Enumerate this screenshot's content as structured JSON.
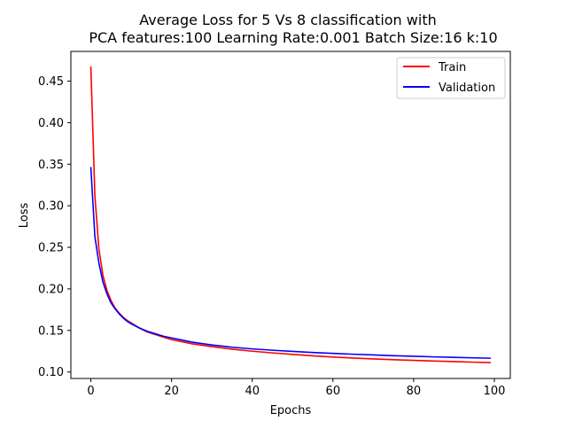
{
  "chart_data": {
    "type": "line",
    "title": "Average Loss for 5 Vs 8 classification with\nPCA features:100 Learning Rate:0.001 Batch Size:16 k:10",
    "xlabel": "Epochs",
    "ylabel": "Loss",
    "xlim": [
      -4.95,
      103.95
    ],
    "ylim": [
      0.0922,
      0.4857
    ],
    "xticks": [
      0,
      20,
      40,
      60,
      80,
      100
    ],
    "yticks": [
      0.1,
      0.15,
      0.2,
      0.25,
      0.3,
      0.35,
      0.4,
      0.45
    ],
    "xtick_labels": [
      "0",
      "20",
      "40",
      "60",
      "80",
      "100"
    ],
    "ytick_labels": [
      "0.10",
      "0.15",
      "0.20",
      "0.25",
      "0.30",
      "0.35",
      "0.40",
      "0.45"
    ],
    "grid": false,
    "legend": {
      "location": "top-right"
    },
    "series": [
      {
        "name": "Train",
        "color": "#ff0000",
        "x": [
          0,
          1,
          2,
          3,
          4,
          5,
          6,
          7,
          8,
          9,
          10,
          12,
          14,
          16,
          18,
          20,
          25,
          30,
          35,
          40,
          45,
          50,
          55,
          60,
          65,
          70,
          75,
          80,
          85,
          90,
          95,
          99
        ],
        "y": [
          0.467,
          0.312,
          0.248,
          0.216,
          0.198,
          0.186,
          0.177,
          0.171,
          0.166,
          0.162,
          0.159,
          0.153,
          0.148,
          0.145,
          0.142,
          0.139,
          0.134,
          0.1305,
          0.1275,
          0.125,
          0.123,
          0.1212,
          0.1195,
          0.118,
          0.1168,
          0.1157,
          0.1148,
          0.114,
          0.1132,
          0.1125,
          0.1118,
          0.1113
        ]
      },
      {
        "name": "Validation",
        "color": "#0000ff",
        "x": [
          0,
          1,
          2,
          3,
          4,
          5,
          6,
          7,
          8,
          9,
          10,
          12,
          14,
          16,
          18,
          20,
          25,
          30,
          35,
          40,
          45,
          50,
          55,
          60,
          65,
          70,
          75,
          80,
          85,
          90,
          95,
          99
        ],
        "y": [
          0.346,
          0.263,
          0.231,
          0.208,
          0.194,
          0.183,
          0.176,
          0.17,
          0.165,
          0.161,
          0.158,
          0.153,
          0.149,
          0.146,
          0.143,
          0.141,
          0.136,
          0.1325,
          0.1298,
          0.1278,
          0.1262,
          0.1248,
          0.1235,
          0.1224,
          0.1214,
          0.1205,
          0.1196,
          0.1189,
          0.1182,
          0.1176,
          0.117,
          0.1166
        ]
      }
    ]
  }
}
